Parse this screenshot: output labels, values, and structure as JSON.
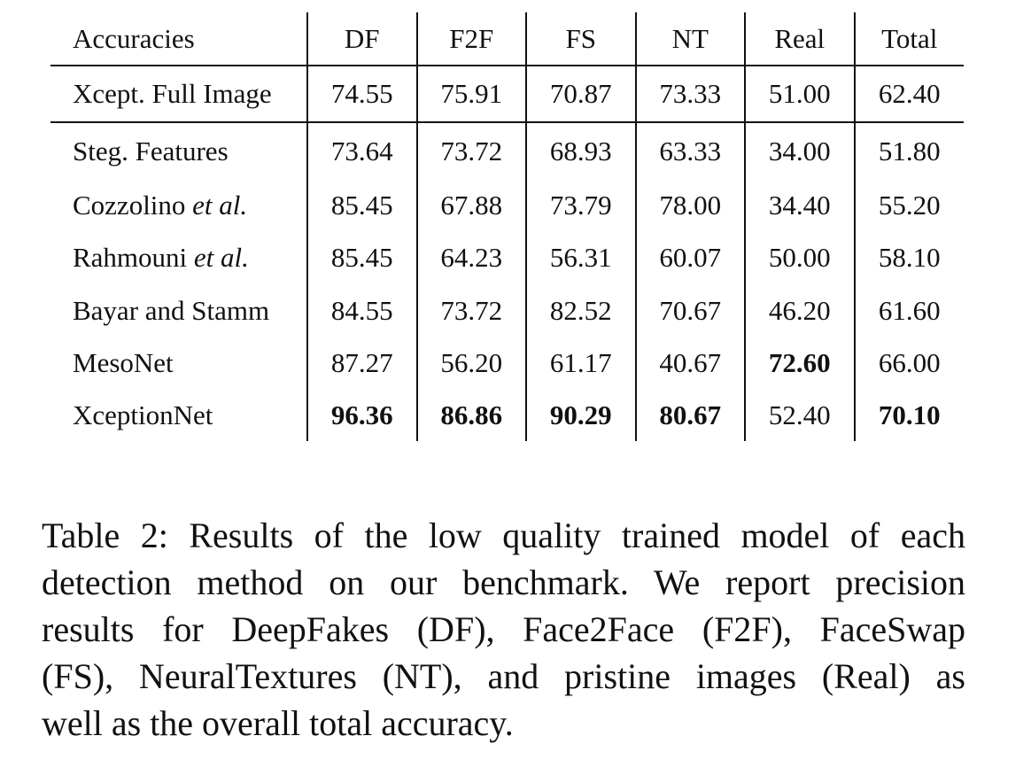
{
  "table": {
    "columns": [
      "Accuracies",
      "DF",
      "F2F",
      "FS",
      "NT",
      "Real",
      "Total"
    ],
    "baseline": {
      "method": "Xcept. Full Image",
      "values": [
        "74.55",
        "75.91",
        "70.87",
        "73.33",
        "51.00",
        "62.40"
      ]
    },
    "rows": [
      {
        "method": "Steg. Features",
        "values": [
          "73.64",
          "73.72",
          "68.93",
          "63.33",
          "34.00",
          "51.80"
        ]
      },
      {
        "method": "Cozzolino",
        "method_suffix": "et al.",
        "values": [
          "85.45",
          "67.88",
          "73.79",
          "78.00",
          "34.40",
          "55.20"
        ]
      },
      {
        "method": "Rahmouni",
        "method_suffix": "et al.",
        "values": [
          "85.45",
          "64.23",
          "56.31",
          "60.07",
          "50.00",
          "58.10"
        ]
      },
      {
        "method": "Bayar and Stamm",
        "values": [
          "84.55",
          "73.72",
          "82.52",
          "70.67",
          "46.20",
          "61.60"
        ]
      },
      {
        "method": "MesoNet",
        "values": [
          "87.27",
          "56.20",
          "61.17",
          "40.67",
          "72.60",
          "66.00"
        ]
      },
      {
        "method": "XceptionNet",
        "values": [
          "96.36",
          "86.86",
          "90.29",
          "80.67",
          "52.40",
          "70.10"
        ]
      }
    ]
  },
  "caption": {
    "lines": [
      "Table 2: Results of the low quality trained model of each",
      "detection method on our benchmark. We report precision",
      "results for DeepFakes (DF), Face2Face (F2F), FaceSwap",
      "(FS), NeuralTextures (NT), and pristine images (Real) as",
      "well as the overall total accuracy."
    ]
  }
}
